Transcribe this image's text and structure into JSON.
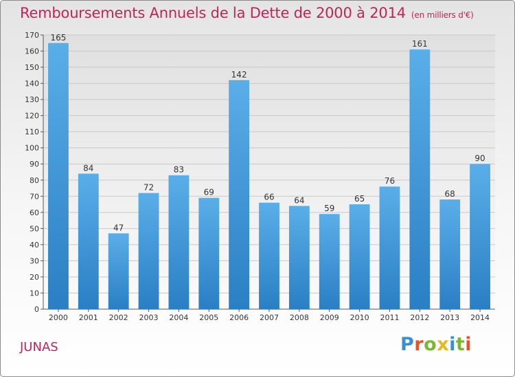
{
  "header": {
    "title": "Remboursements Annuels de la Dette de 2000 à 2014",
    "unit": "(en milliers d'€)"
  },
  "footer": {
    "commune": "JUNAS",
    "logo_text": "Proxiti"
  },
  "colors": {
    "title": "#c0245a",
    "bar_top": "#5aaee8",
    "bar_bottom": "#2a7fc4",
    "logo_letters": [
      "#3a8fd0",
      "#e8522a",
      "#7ab82e",
      "#e8b81e",
      "#3a8fd0",
      "#7ab82e",
      "#e8522a"
    ]
  },
  "chart_data": {
    "type": "bar",
    "categories": [
      "2000",
      "2001",
      "2002",
      "2003",
      "2004",
      "2005",
      "2006",
      "2007",
      "2008",
      "2009",
      "2010",
      "2011",
      "2012",
      "2013",
      "2014"
    ],
    "values": [
      165,
      84,
      47,
      72,
      83,
      69,
      142,
      66,
      64,
      59,
      65,
      76,
      161,
      68,
      90
    ],
    "ylim": [
      0,
      170
    ],
    "yticks": [
      0,
      10,
      20,
      30,
      40,
      50,
      60,
      70,
      80,
      90,
      100,
      110,
      120,
      130,
      140,
      150,
      160,
      170
    ],
    "grid": true
  }
}
